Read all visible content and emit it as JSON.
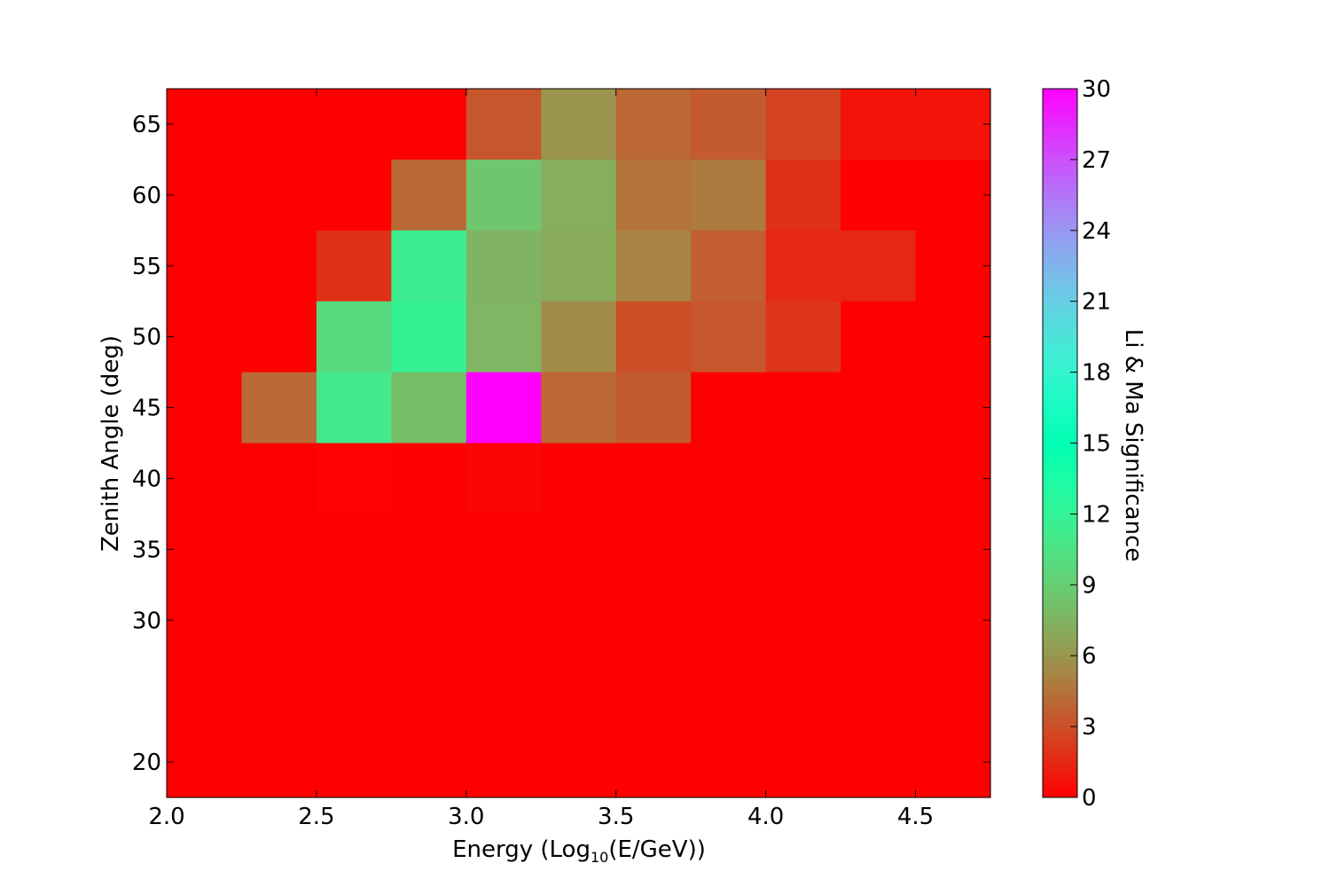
{
  "chart_data": {
    "type": "heatmap",
    "title": "",
    "xlabel": {
      "prefix": "Energy (Log",
      "sub": "10",
      "suffix": "(E/GeV))"
    },
    "ylabel": "Zenith Angle (deg)",
    "colorbar_label": "Li & Ma Significance",
    "colormap": "rainbow_r",
    "xlim": [
      2.0,
      4.75
    ],
    "ylim": [
      17.5,
      67.5
    ],
    "x_edges": [
      2.0,
      2.25,
      2.5,
      2.75,
      3.0,
      3.25,
      3.5,
      3.75,
      4.0,
      4.25,
      4.5,
      4.75
    ],
    "y_edges": [
      17.5,
      22.5,
      27.5,
      32.5,
      37.5,
      42.5,
      47.5,
      52.5,
      57.5,
      62.5,
      67.5
    ],
    "x_ticks": [
      2.0,
      2.5,
      3.0,
      3.5,
      4.0,
      4.5
    ],
    "x_tick_labels": [
      "2.0",
      "2.5",
      "3.0",
      "3.5",
      "4.0",
      "4.5"
    ],
    "y_ticks": [
      20,
      30,
      35,
      40,
      45,
      50,
      55,
      60,
      65
    ],
    "y_tick_labels": [
      "20",
      "30",
      "35",
      "40",
      "45",
      "50",
      "55",
      "60",
      "65"
    ],
    "clim": [
      0,
      30
    ],
    "colorbar_ticks": [
      0,
      3,
      6,
      9,
      12,
      15,
      18,
      21,
      24,
      27,
      30
    ],
    "colorbar_tick_labels": [
      "0",
      "3",
      "6",
      "9",
      "12",
      "15",
      "18",
      "21",
      "24",
      "27",
      "30"
    ],
    "values_rows_top_to_bottom": [
      [
        0,
        0,
        0,
        0,
        3.3,
        5.9,
        4.0,
        3.5,
        2.5,
        0.7,
        0.7
      ],
      [
        0,
        0,
        0,
        4.1,
        8.5,
        7.2,
        4.5,
        4.8,
        1.8,
        0,
        0
      ],
      [
        0,
        0,
        1.8,
        11.5,
        7.5,
        7.0,
        5.2,
        3.6,
        1.5,
        1.5,
        0
      ],
      [
        0,
        0,
        9.9,
        11.8,
        7.6,
        5.5,
        3.0,
        3.3,
        2.0,
        0,
        0
      ],
      [
        0,
        4.1,
        11.0,
        8.0,
        30,
        4.0,
        3.5,
        0,
        0,
        0,
        0
      ],
      [
        0,
        0,
        0.1,
        0,
        0.2,
        0,
        0,
        0,
        0,
        0,
        0
      ],
      [
        0,
        0,
        0,
        0,
        0,
        0,
        0,
        0,
        0,
        0,
        0
      ],
      [
        0,
        0,
        0,
        0,
        0,
        0,
        0,
        0,
        0,
        0,
        0
      ],
      [
        0,
        0,
        0,
        0,
        0,
        0,
        0,
        0,
        0,
        0,
        0
      ],
      [
        0,
        0,
        0,
        0,
        0,
        0,
        0,
        0,
        0,
        0,
        0
      ]
    ]
  }
}
